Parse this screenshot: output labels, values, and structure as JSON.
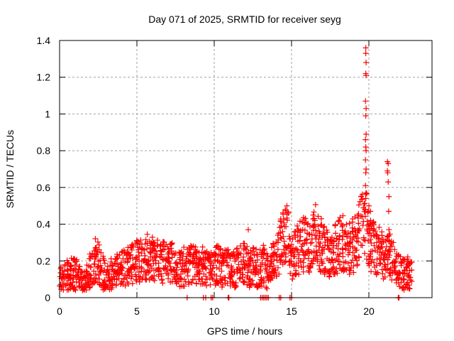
{
  "chart_data": {
    "type": "scatter",
    "title": "Day 071 of 2025, SRMTID for receiver seyg",
    "xlabel": "GPS time / hours",
    "ylabel": "SRMTID / TECUs",
    "xlim": [
      0,
      24.1
    ],
    "ylim": [
      0,
      1.4
    ],
    "xticks": [
      0,
      5,
      10,
      15,
      20
    ],
    "xtick_labels": [
      "0",
      "5",
      "10",
      "15",
      "20"
    ],
    "yticks": [
      0,
      0.2,
      0.4,
      0.6,
      0.8,
      1.0,
      1.2,
      1.4
    ],
    "ytick_labels": [
      "0",
      "0.2",
      "0.4",
      "0.6",
      "0.8",
      "1",
      "1.2",
      "1.4"
    ],
    "grid": true,
    "marker": "+",
    "color": "#ff0000",
    "legend": "none",
    "series": [
      {
        "name": "SRMTID",
        "envelope": [
          [
            0.0,
            0.09
          ],
          [
            0.3,
            0.11
          ],
          [
            0.6,
            0.12
          ],
          [
            0.9,
            0.13
          ],
          [
            1.2,
            0.11
          ],
          [
            1.5,
            0.08
          ],
          [
            1.8,
            0.1
          ],
          [
            2.1,
            0.18
          ],
          [
            2.4,
            0.22
          ],
          [
            2.7,
            0.16
          ],
          [
            3.0,
            0.1
          ],
          [
            3.3,
            0.12
          ],
          [
            3.6,
            0.13
          ],
          [
            3.9,
            0.15
          ],
          [
            4.2,
            0.16
          ],
          [
            4.5,
            0.17
          ],
          [
            4.8,
            0.2
          ],
          [
            5.1,
            0.19
          ],
          [
            5.4,
            0.22
          ],
          [
            5.7,
            0.23
          ],
          [
            6.0,
            0.22
          ],
          [
            6.3,
            0.21
          ],
          [
            6.6,
            0.2
          ],
          [
            6.9,
            0.19
          ],
          [
            7.2,
            0.2
          ],
          [
            7.5,
            0.18
          ],
          [
            7.8,
            0.16
          ],
          [
            8.1,
            0.17
          ],
          [
            8.4,
            0.18
          ],
          [
            8.7,
            0.17
          ],
          [
            9.0,
            0.16
          ],
          [
            9.3,
            0.17
          ],
          [
            9.6,
            0.15
          ],
          [
            9.9,
            0.16
          ],
          [
            10.2,
            0.18
          ],
          [
            10.5,
            0.16
          ],
          [
            10.8,
            0.17
          ],
          [
            11.1,
            0.15
          ],
          [
            11.4,
            0.16
          ],
          [
            11.7,
            0.18
          ],
          [
            12.0,
            0.2
          ],
          [
            12.3,
            0.16
          ],
          [
            12.6,
            0.17
          ],
          [
            12.9,
            0.15
          ],
          [
            13.2,
            0.18
          ],
          [
            13.5,
            0.14
          ],
          [
            13.8,
            0.2
          ],
          [
            14.1,
            0.24
          ],
          [
            14.4,
            0.3
          ],
          [
            14.7,
            0.38
          ],
          [
            15.0,
            0.22
          ],
          [
            15.3,
            0.26
          ],
          [
            15.6,
            0.28
          ],
          [
            15.9,
            0.3
          ],
          [
            16.2,
            0.25
          ],
          [
            16.5,
            0.35
          ],
          [
            16.8,
            0.3
          ],
          [
            17.1,
            0.26
          ],
          [
            17.4,
            0.22
          ],
          [
            17.7,
            0.25
          ],
          [
            18.0,
            0.28
          ],
          [
            18.3,
            0.3
          ],
          [
            18.6,
            0.26
          ],
          [
            18.9,
            0.28
          ],
          [
            19.2,
            0.3
          ],
          [
            19.5,
            0.38
          ],
          [
            19.8,
            0.42
          ],
          [
            20.1,
            0.3
          ],
          [
            20.4,
            0.26
          ],
          [
            20.7,
            0.28
          ],
          [
            21.0,
            0.22
          ],
          [
            21.3,
            0.25
          ],
          [
            21.6,
            0.18
          ],
          [
            21.9,
            0.14
          ],
          [
            22.2,
            0.12
          ],
          [
            22.5,
            0.13
          ],
          [
            22.8,
            0.11
          ]
        ],
        "spikes": [
          [
            19.8,
            1.36
          ],
          [
            19.8,
            1.33
          ],
          [
            19.82,
            1.28
          ],
          [
            19.8,
            1.22
          ],
          [
            19.82,
            1.21
          ],
          [
            19.78,
            1.07
          ],
          [
            19.82,
            1.03
          ],
          [
            19.8,
            0.99
          ],
          [
            19.82,
            0.89
          ],
          [
            19.78,
            0.86
          ],
          [
            19.8,
            0.82
          ],
          [
            19.82,
            0.8
          ],
          [
            19.78,
            0.75
          ],
          [
            19.82,
            0.7
          ],
          [
            19.8,
            0.68
          ],
          [
            19.78,
            0.61
          ],
          [
            19.82,
            0.57
          ],
          [
            19.8,
            0.54
          ],
          [
            20.0,
            0.5
          ],
          [
            20.1,
            0.47
          ],
          [
            21.2,
            0.74
          ],
          [
            21.25,
            0.73
          ],
          [
            21.2,
            0.69
          ],
          [
            21.22,
            0.68
          ],
          [
            21.25,
            0.63
          ],
          [
            21.3,
            0.55
          ],
          [
            21.28,
            0.47
          ],
          [
            21.3,
            0.37
          ],
          [
            21.3,
            0.31
          ],
          [
            21.3,
            0.26
          ],
          [
            14.6,
            0.48
          ],
          [
            14.7,
            0.5
          ],
          [
            14.8,
            0.46
          ],
          [
            16.4,
            0.45
          ],
          [
            16.5,
            0.42
          ],
          [
            12.2,
            0.37
          ],
          [
            19.5,
            0.55
          ]
        ],
        "zero_points_x": [
          8.25,
          9.3,
          9.45,
          9.8,
          9.9,
          10.9,
          10.95,
          13.0,
          13.1,
          13.2,
          13.3,
          13.4,
          13.5,
          14.2,
          14.3,
          14.9,
          15.0,
          21.9,
          21.95
        ]
      }
    ]
  }
}
